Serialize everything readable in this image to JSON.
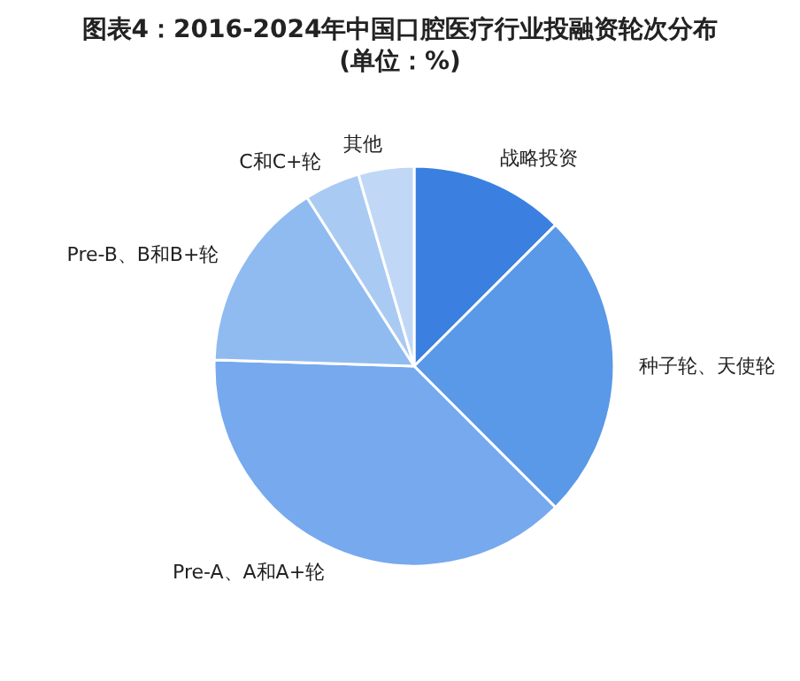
{
  "chart_data": {
    "type": "pie",
    "title": "图表4：2016-2024年中国口腔医疗行业投融资轮次分布",
    "subtitle": "(单位：%)",
    "categories": [
      "战略投资",
      "种子轮、天使轮",
      "Pre-A、A和A+轮",
      "Pre-B、B和B+轮",
      "C和C+轮",
      "其他"
    ],
    "values": [
      12.5,
      25,
      38,
      15.5,
      4.5,
      4.5
    ],
    "colors": [
      "#3b80e0",
      "#5a98e8",
      "#76a9ee",
      "#90bbf1",
      "#a9caf3",
      "#c0d8f6"
    ],
    "legend": false
  }
}
